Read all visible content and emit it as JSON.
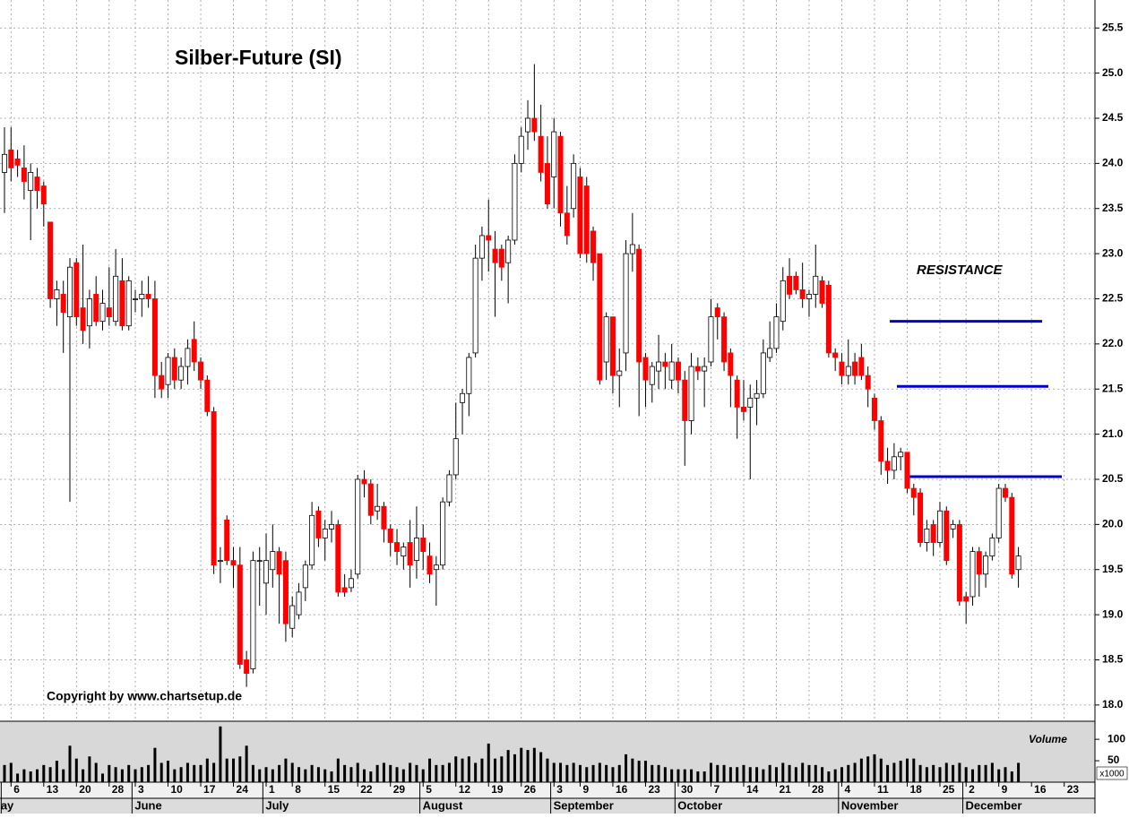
{
  "chart_data": {
    "type": "candlestick",
    "title": "Silber-Future (SI)",
    "annotations": [
      "RESISTANCE",
      "Copyright by www.chartsetup.de"
    ],
    "up_color": "#ffffff",
    "down_color": "#ff0000",
    "open": [
      23.9,
      24.15,
      24.05,
      23.95,
      23.7,
      23.85,
      23.75,
      23.35,
      22.5,
      22.55,
      22.3,
      22.9,
      22.4,
      22.2,
      22.55,
      22.25,
      22.4,
      22.25,
      22.7,
      22.2,
      22.5,
      22.5,
      22.55,
      22.5,
      21.65,
      21.55,
      21.85,
      21.6,
      21.75,
      22.05,
      21.8,
      21.6,
      21.25,
      19.6,
      20.05,
      19.6,
      19.55,
      18.5,
      18.4,
      19.6,
      19.35,
      19.5,
      19.7,
      19.6,
      18.85,
      19.0,
      19.3,
      19.55,
      20.15,
      19.85,
      19.95,
      20.0,
      19.3,
      19.3,
      19.45,
      20.5,
      20.45,
      20.15,
      20.2,
      19.95,
      19.8,
      19.65,
      19.8,
      19.6,
      19.85,
      19.65,
      19.5,
      19.55,
      20.25,
      20.55,
      21.35,
      21.45,
      21.9,
      22.95,
      23.2,
      23.05,
      23.05,
      22.9,
      23.15,
      24.0,
      24.35,
      24.5,
      24.3,
      24.0,
      23.85,
      24.3,
      23.45,
      23.5,
      23.85,
      23.75,
      23.25,
      23.0,
      21.8,
      22.3,
      21.65,
      21.9,
      23.0,
      23.05,
      21.85,
      21.55,
      21.7,
      21.8,
      21.6,
      21.8,
      21.6,
      21.15,
      21.75,
      21.7,
      21.8,
      22.4,
      22.3,
      21.9,
      21.6,
      21.3,
      21.3,
      21.4,
      21.45,
      21.85,
      21.95,
      22.25,
      22.75,
      22.75,
      22.6,
      22.5,
      22.55,
      22.7,
      22.65,
      21.9,
      21.8,
      21.65,
      21.8,
      21.85,
      21.65,
      21.4,
      21.15,
      20.7,
      20.6,
      20.75,
      20.8,
      20.4,
      20.35,
      19.8,
      20.0,
      19.8,
      20.15,
      19.95,
      20.0,
      19.2,
      19.2,
      19.7,
      19.45,
      19.65,
      19.85,
      20.4,
      20.3,
      19.5
    ],
    "high": [
      24.4,
      24.4,
      24.15,
      24.2,
      24.0,
      23.95,
      23.8,
      23.35,
      22.7,
      22.7,
      22.95,
      22.95,
      23.1,
      22.6,
      22.75,
      22.6,
      22.85,
      23.05,
      22.95,
      22.75,
      22.6,
      22.7,
      22.75,
      22.7,
      21.8,
      21.9,
      21.95,
      21.85,
      22.05,
      22.25,
      21.85,
      21.65,
      21.3,
      19.75,
      20.1,
      19.75,
      19.75,
      18.6,
      19.7,
      19.75,
      19.9,
      20.0,
      19.75,
      19.7,
      19.2,
      19.35,
      19.6,
      20.25,
      20.2,
      20.05,
      20.15,
      20.05,
      19.45,
      19.5,
      20.55,
      20.6,
      20.5,
      20.45,
      20.25,
      20.0,
      19.95,
      19.8,
      20.05,
      20.2,
      20.0,
      19.8,
      19.65,
      20.3,
      20.6,
      21.35,
      21.5,
      21.9,
      23.1,
      23.3,
      23.6,
      23.25,
      23.1,
      23.2,
      24.1,
      24.4,
      24.7,
      25.1,
      24.65,
      24.3,
      24.5,
      24.35,
      23.75,
      24.1,
      23.95,
      23.85,
      23.3,
      23.0,
      22.35,
      22.3,
      21.95,
      23.15,
      23.45,
      23.1,
      21.9,
      21.8,
      22.1,
      21.9,
      22.0,
      21.85,
      21.7,
      21.9,
      21.85,
      21.85,
      22.5,
      22.45,
      22.35,
      21.95,
      21.65,
      21.6,
      21.55,
      21.6,
      22.05,
      22.25,
      22.45,
      22.85,
      22.95,
      22.8,
      22.9,
      22.6,
      23.1,
      22.75,
      22.7,
      21.95,
      21.9,
      22.05,
      21.9,
      22.0,
      21.75,
      21.45,
      21.2,
      20.85,
      20.9,
      20.85,
      20.8,
      20.45,
      20.4,
      20.05,
      20.05,
      20.25,
      20.2,
      20.05,
      20.05,
      19.25,
      19.75,
      19.75,
      19.7,
      19.9,
      20.45,
      20.45,
      20.35,
      19.75
    ],
    "low": [
      23.45,
      23.8,
      23.85,
      23.6,
      23.15,
      23.5,
      23.3,
      22.4,
      22.2,
      21.9,
      20.25,
      22.2,
      22.0,
      21.95,
      22.2,
      22.15,
      22.2,
      22.2,
      22.15,
      22.15,
      22.35,
      22.3,
      22.4,
      21.4,
      21.4,
      21.4,
      21.5,
      21.5,
      21.55,
      21.7,
      21.5,
      21.2,
      19.45,
      19.35,
      19.55,
      19.3,
      18.4,
      18.2,
      18.35,
      19.1,
      19.0,
      19.3,
      18.9,
      18.7,
      18.75,
      18.95,
      19.15,
      19.5,
      19.75,
      19.6,
      19.8,
      19.2,
      19.2,
      19.25,
      19.4,
      20.3,
      20.0,
      20.05,
      19.8,
      19.65,
      19.55,
      19.5,
      19.3,
      19.4,
      19.5,
      19.35,
      19.1,
      19.5,
      20.2,
      20.5,
      21.0,
      21.2,
      21.85,
      22.7,
      22.8,
      22.3,
      22.7,
      22.45,
      23.1,
      23.9,
      24.15,
      24.25,
      23.8,
      23.5,
      23.5,
      23.3,
      23.1,
      23.4,
      22.95,
      22.9,
      22.7,
      21.55,
      21.6,
      21.45,
      21.3,
      21.7,
      22.8,
      21.2,
      21.3,
      21.35,
      21.5,
      21.5,
      21.5,
      21.45,
      20.65,
      21.0,
      21.6,
      21.3,
      21.75,
      22.05,
      21.7,
      21.3,
      20.95,
      21.15,
      20.5,
      21.1,
      21.4,
      21.8,
      21.9,
      22.15,
      22.5,
      22.55,
      22.4,
      22.3,
      22.4,
      22.4,
      21.85,
      21.7,
      21.55,
      21.55,
      21.55,
      21.6,
      21.3,
      21.05,
      20.55,
      20.45,
      20.5,
      20.6,
      20.35,
      20.1,
      19.75,
      19.7,
      19.65,
      19.75,
      19.55,
      19.85,
      19.1,
      18.9,
      19.1,
      19.2,
      19.3,
      19.6,
      19.8,
      20.25,
      19.4,
      19.3
    ],
    "close": [
      24.1,
      23.95,
      23.98,
      23.8,
      23.9,
      23.7,
      23.55,
      22.5,
      22.6,
      22.35,
      22.85,
      22.3,
      22.15,
      22.5,
      22.25,
      22.45,
      22.3,
      22.75,
      22.2,
      22.7,
      22.5,
      22.55,
      22.5,
      21.65,
      21.5,
      21.85,
      21.6,
      21.75,
      21.95,
      21.8,
      21.6,
      21.25,
      19.55,
      19.6,
      19.6,
      19.55,
      18.45,
      18.35,
      19.6,
      19.6,
      19.6,
      19.7,
      19.45,
      18.9,
      19.1,
      19.25,
      19.55,
      20.1,
      19.85,
      19.95,
      20.0,
      19.25,
      19.25,
      19.4,
      20.5,
      20.45,
      20.1,
      20.2,
      19.95,
      19.8,
      19.7,
      19.75,
      19.55,
      19.85,
      19.7,
      19.45,
      19.55,
      20.25,
      20.55,
      20.95,
      21.45,
      21.85,
      22.95,
      23.2,
      23.15,
      22.9,
      22.85,
      23.15,
      24.0,
      24.3,
      24.5,
      24.35,
      23.9,
      23.55,
      24.35,
      23.45,
      23.2,
      24.0,
      23.0,
      23.0,
      22.9,
      21.6,
      22.3,
      21.65,
      21.7,
      23.0,
      23.1,
      21.8,
      21.6,
      21.75,
      21.8,
      21.75,
      21.8,
      21.6,
      21.15,
      21.75,
      21.7,
      21.75,
      22.3,
      22.3,
      21.8,
      21.65,
      21.3,
      21.25,
      21.4,
      21.45,
      21.9,
      21.95,
      22.3,
      22.7,
      22.55,
      22.6,
      22.5,
      22.55,
      22.75,
      22.45,
      21.9,
      21.85,
      21.65,
      21.75,
      21.65,
      21.65,
      21.5,
      21.15,
      20.7,
      20.6,
      20.75,
      20.8,
      20.4,
      20.3,
      19.8,
      19.95,
      19.8,
      20.15,
      19.6,
      20.0,
      19.15,
      19.15,
      19.7,
      19.45,
      19.65,
      19.85,
      20.4,
      20.3,
      19.45,
      19.65
    ],
    "xlim": [
      -0.685,
      166.7
    ],
    "ylim": [
      17.82,
      25.81
    ],
    "yticks": [
      {
        "value": 18,
        "label": "18.0"
      },
      {
        "value": 18.5,
        "label": "18.5"
      },
      {
        "value": 19,
        "label": "19.0"
      },
      {
        "value": 19.5,
        "label": "19.5"
      },
      {
        "value": 20,
        "label": "20.0"
      },
      {
        "value": 20.5,
        "label": "20.5"
      },
      {
        "value": 21,
        "label": "21.0"
      },
      {
        "value": 21.5,
        "label": "21.5"
      },
      {
        "value": 22,
        "label": "22.0"
      },
      {
        "value": 22.5,
        "label": "22.5"
      },
      {
        "value": 23,
        "label": "23.0"
      },
      {
        "value": 23.5,
        "label": "23.5"
      },
      {
        "value": 24,
        "label": "24.0"
      },
      {
        "value": 24.5,
        "label": "24.5"
      },
      {
        "value": 25,
        "label": "25.0"
      },
      {
        "value": 25.5,
        "label": "25.5"
      }
    ],
    "xticks": [
      {
        "value": 1,
        "label": "6"
      },
      {
        "value": 6,
        "label": "13"
      },
      {
        "value": 11,
        "label": "20"
      },
      {
        "value": 16,
        "label": "28"
      },
      {
        "value": 20,
        "label": "3"
      },
      {
        "value": 25,
        "label": "10"
      },
      {
        "value": 30,
        "label": "17"
      },
      {
        "value": 35,
        "label": "24"
      },
      {
        "value": 40,
        "label": "1"
      },
      {
        "value": 44,
        "label": "8"
      },
      {
        "value": 49,
        "label": "15"
      },
      {
        "value": 54,
        "label": "22"
      },
      {
        "value": 59,
        "label": "29"
      },
      {
        "value": 64,
        "label": "5"
      },
      {
        "value": 69,
        "label": "12"
      },
      {
        "value": 74,
        "label": "19"
      },
      {
        "value": 79,
        "label": "26"
      },
      {
        "value": 84,
        "label": "3"
      },
      {
        "value": 88,
        "label": "9"
      },
      {
        "value": 93,
        "label": "16"
      },
      {
        "value": 98,
        "label": "23"
      },
      {
        "value": 103,
        "label": "30"
      },
      {
        "value": 108,
        "label": "7"
      },
      {
        "value": 113,
        "label": "14"
      },
      {
        "value": 118,
        "label": "21"
      },
      {
        "value": 123,
        "label": "28"
      },
      {
        "value": 128,
        "label": "4"
      },
      {
        "value": 133,
        "label": "11"
      },
      {
        "value": 138,
        "label": "18"
      },
      {
        "value": 143,
        "label": "25"
      },
      {
        "value": 147,
        "label": "2"
      },
      {
        "value": 152,
        "label": "9"
      },
      {
        "value": 157,
        "label": "16"
      },
      {
        "value": 162,
        "label": "23"
      }
    ],
    "months": [
      {
        "value": 0,
        "label": "May"
      },
      {
        "value": 20,
        "label": "June"
      },
      {
        "value": 40,
        "label": "July"
      },
      {
        "value": 64,
        "label": "August"
      },
      {
        "value": 84,
        "label": "September"
      },
      {
        "value": 103,
        "label": "October"
      },
      {
        "value": 128,
        "label": "November"
      },
      {
        "value": 147,
        "label": "December"
      }
    ],
    "resistance": {
      "color": "#0000cc",
      "values": [
        22.25,
        21.53,
        20.53
      ]
    },
    "volume": {
      "label": "Volume",
      "unit": "x1000",
      "color": "#000000",
      "ylim": [
        0,
        140
      ],
      "yticks": [
        50,
        100
      ],
      "values": [
        40,
        45,
        20,
        30,
        25,
        30,
        40,
        35,
        50,
        30,
        85,
        55,
        30,
        60,
        45,
        20,
        40,
        35,
        30,
        40,
        30,
        35,
        40,
        80,
        45,
        50,
        30,
        35,
        45,
        40,
        40,
        55,
        45,
        130,
        55,
        55,
        60,
        85,
        40,
        30,
        35,
        30,
        40,
        55,
        45,
        35,
        30,
        40,
        35,
        30,
        25,
        55,
        40,
        35,
        45,
        30,
        25,
        40,
        45,
        40,
        35,
        30,
        45,
        40,
        30,
        55,
        40,
        40,
        45,
        60,
        55,
        60,
        45,
        55,
        90,
        55,
        60,
        75,
        65,
        80,
        75,
        80,
        70,
        55,
        45,
        45,
        40,
        45,
        40,
        35,
        40,
        45,
        40,
        35,
        40,
        65,
        55,
        50,
        50,
        40,
        40,
        35,
        30,
        30,
        30,
        30,
        25,
        25,
        45,
        40,
        40,
        35,
        35,
        40,
        35,
        35,
        30,
        40,
        35,
        45,
        40,
        35,
        45,
        40,
        40,
        35,
        25,
        30,
        35,
        40,
        45,
        55,
        60,
        65,
        55,
        40,
        45,
        50,
        55,
        55,
        40,
        35,
        40,
        35,
        45,
        40,
        45,
        35,
        30,
        40,
        40,
        45,
        30,
        35,
        25,
        45
      ]
    },
    "grid": true
  }
}
